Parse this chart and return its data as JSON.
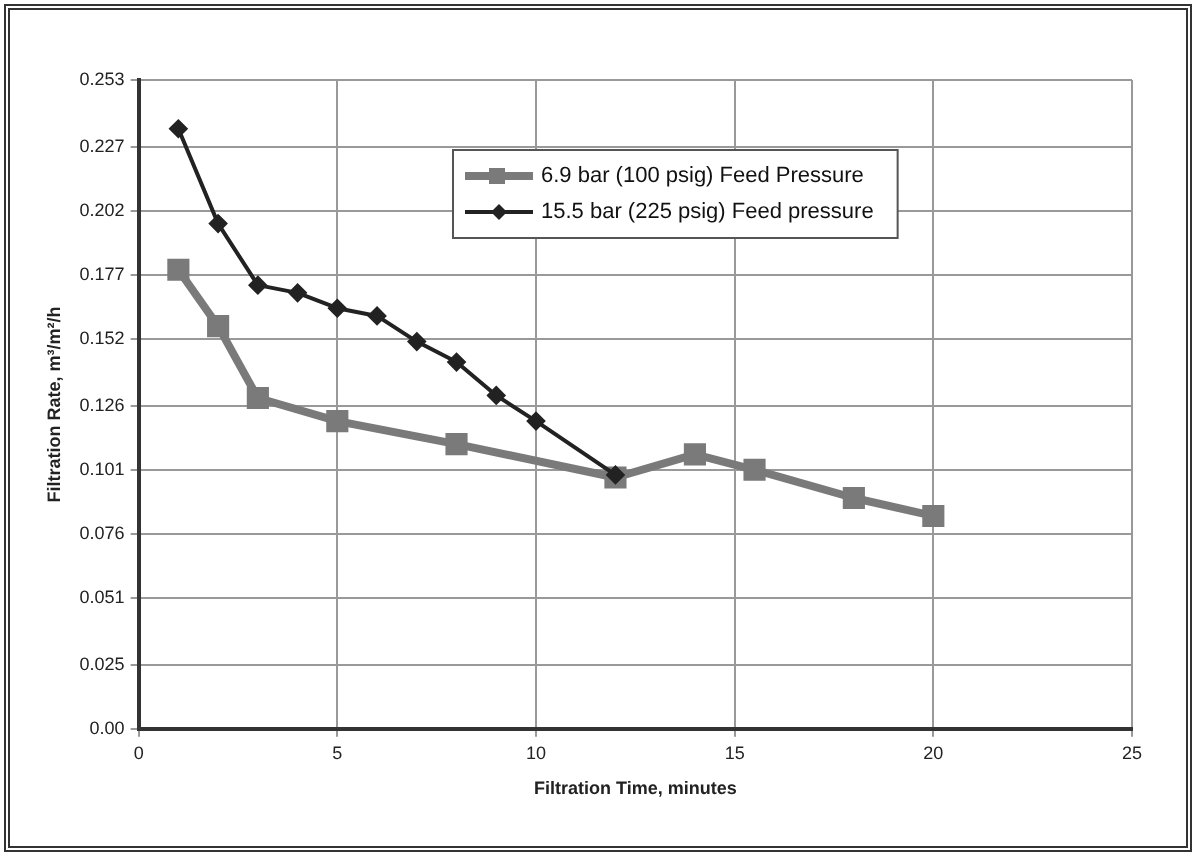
{
  "chart_data": {
    "type": "line",
    "xlabel": "Filtration Time, minutes",
    "ylabel": "Filtration Rate, m³/m²/h",
    "xlim": [
      0,
      25
    ],
    "xticks": [
      0,
      5,
      10,
      15,
      20,
      25
    ],
    "ylim": [
      0,
      0.253
    ],
    "yticks": [
      {
        "value": 0,
        "label": "0.00"
      },
      0.025,
      0.051,
      0.076,
      0.101,
      0.126,
      0.152,
      0.177,
      0.202,
      0.227,
      0.253
    ],
    "grid": true,
    "legend": "top",
    "line_style": "solid",
    "series": [
      {
        "name": "6.9 bar (100 psig) Feed Pressure",
        "color": "#7a7a7a",
        "marker": "square",
        "x": [
          1,
          2,
          3,
          5,
          8,
          12,
          14,
          15.5,
          18,
          20
        ],
        "values": [
          0.179,
          0.157,
          0.129,
          0.12,
          0.111,
          0.098,
          0.107,
          0.101,
          0.09,
          0.083
        ]
      },
      {
        "name": "15.5 bar (225 psig) Feed pressure",
        "color": "#222222",
        "marker": "diamond",
        "x": [
          1,
          2,
          3,
          4,
          5,
          6,
          7,
          8,
          9,
          10,
          12
        ],
        "values": [
          0.234,
          0.197,
          0.173,
          0.17,
          0.164,
          0.161,
          0.151,
          0.143,
          0.13,
          0.12,
          0.099
        ]
      }
    ]
  }
}
